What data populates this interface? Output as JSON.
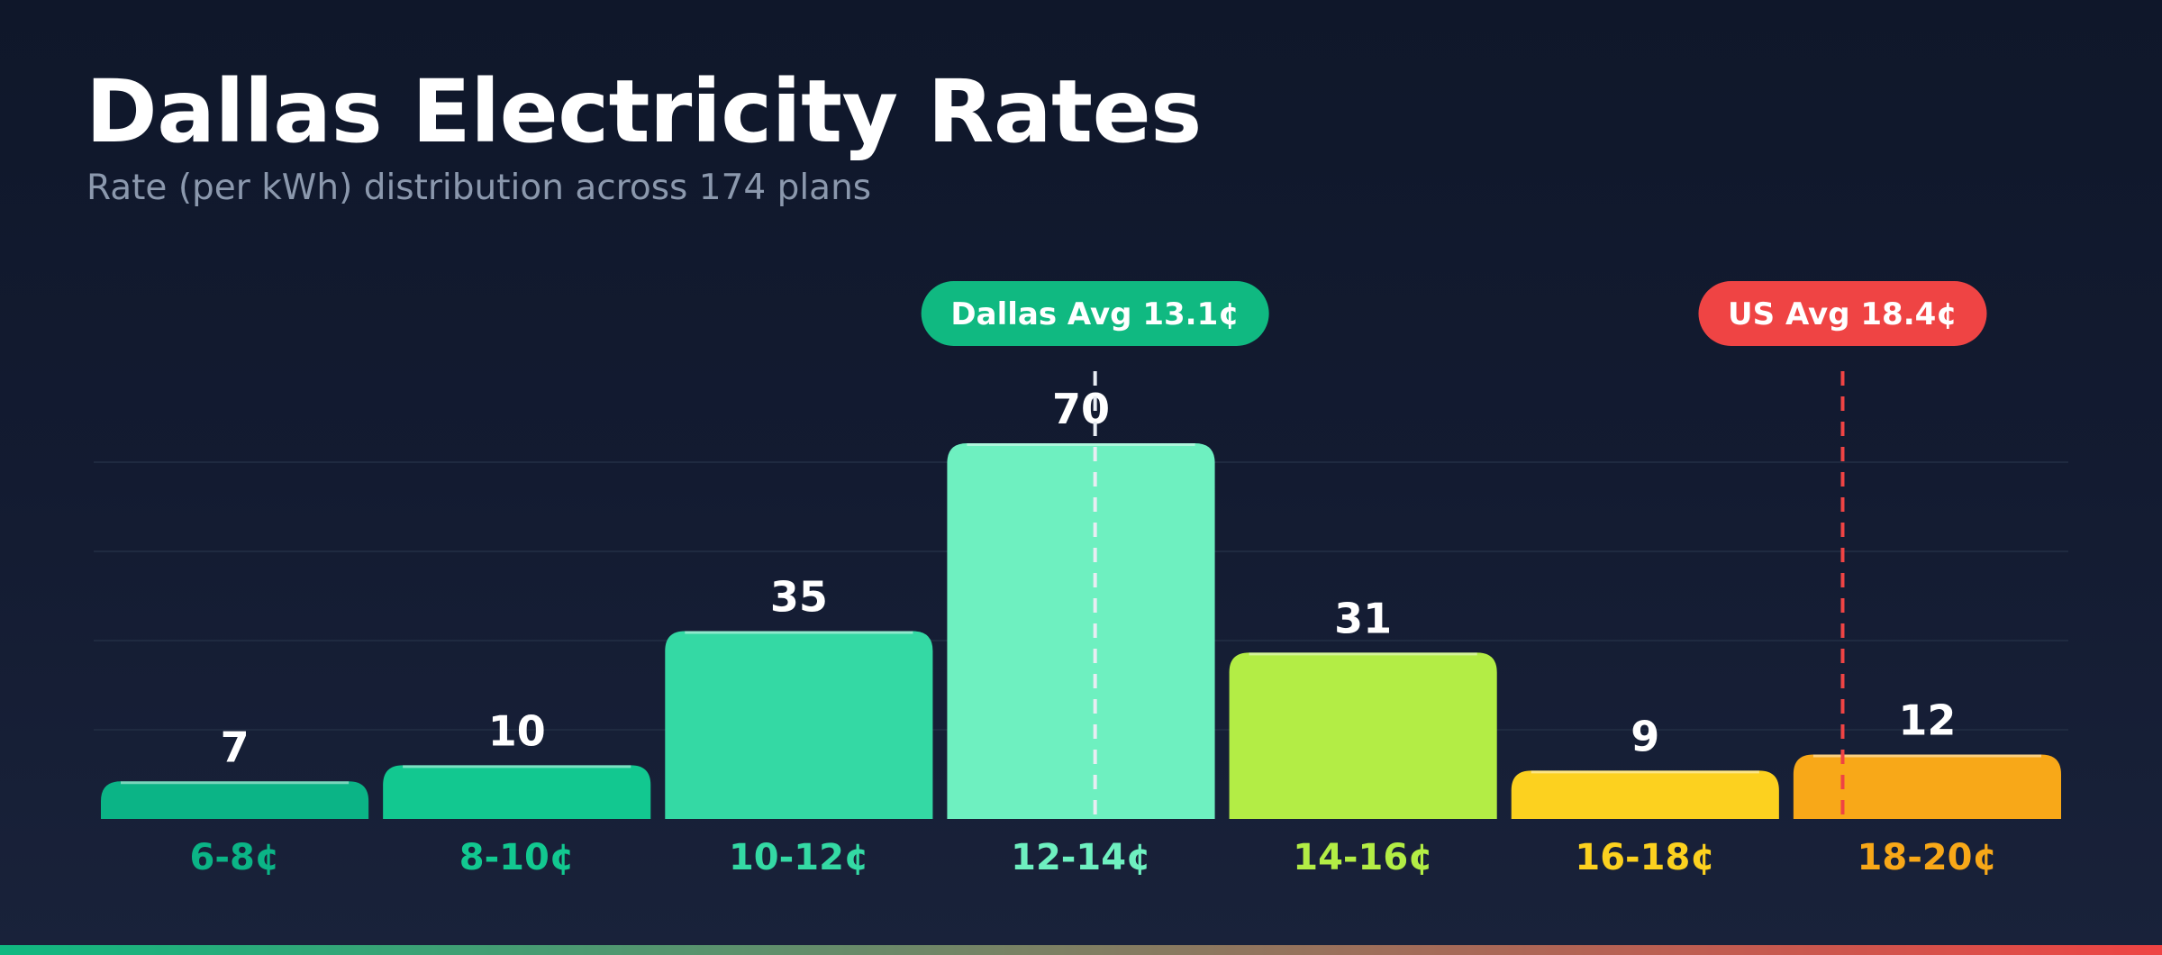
{
  "title": "Dallas Electricity Rates",
  "subtitle": "Rate (per kWh) distribution across 174 plans",
  "colors": {
    "background": "#0f172a",
    "title": "#ffffff",
    "subtitle": "#8b98ad",
    "dallas_avg": "#10b981",
    "us_avg": "#ef4444",
    "gridline": "#1f2a40"
  },
  "chart_data": {
    "type": "bar",
    "title": "Dallas Electricity Rates",
    "subtitle": "Rate (per kWh) distribution across 174 plans",
    "xlabel": "",
    "ylabel": "",
    "categories": [
      "6-8¢",
      "8-10¢",
      "10-12¢",
      "12-14¢",
      "14-16¢",
      "16-18¢",
      "18-20¢"
    ],
    "values": [
      7,
      10,
      35,
      70,
      31,
      9,
      12
    ],
    "bar_colors": [
      "#0bb486",
      "#12c890",
      "#34d9a4",
      "#6ef0c0",
      "#b3ed45",
      "#fcd11f",
      "#f8a818"
    ],
    "ylim": [
      0,
      70
    ],
    "grid": true,
    "x_range": [
      6,
      20
    ],
    "reference_lines": [
      {
        "label": "Dallas Avg 13.1¢",
        "value": 13.1,
        "color": "#10b981",
        "line_color": "#e8edf3"
      },
      {
        "label": "US Avg 18.4¢",
        "value": 18.4,
        "color": "#ef4444",
        "line_color": "#ef4444"
      }
    ]
  }
}
